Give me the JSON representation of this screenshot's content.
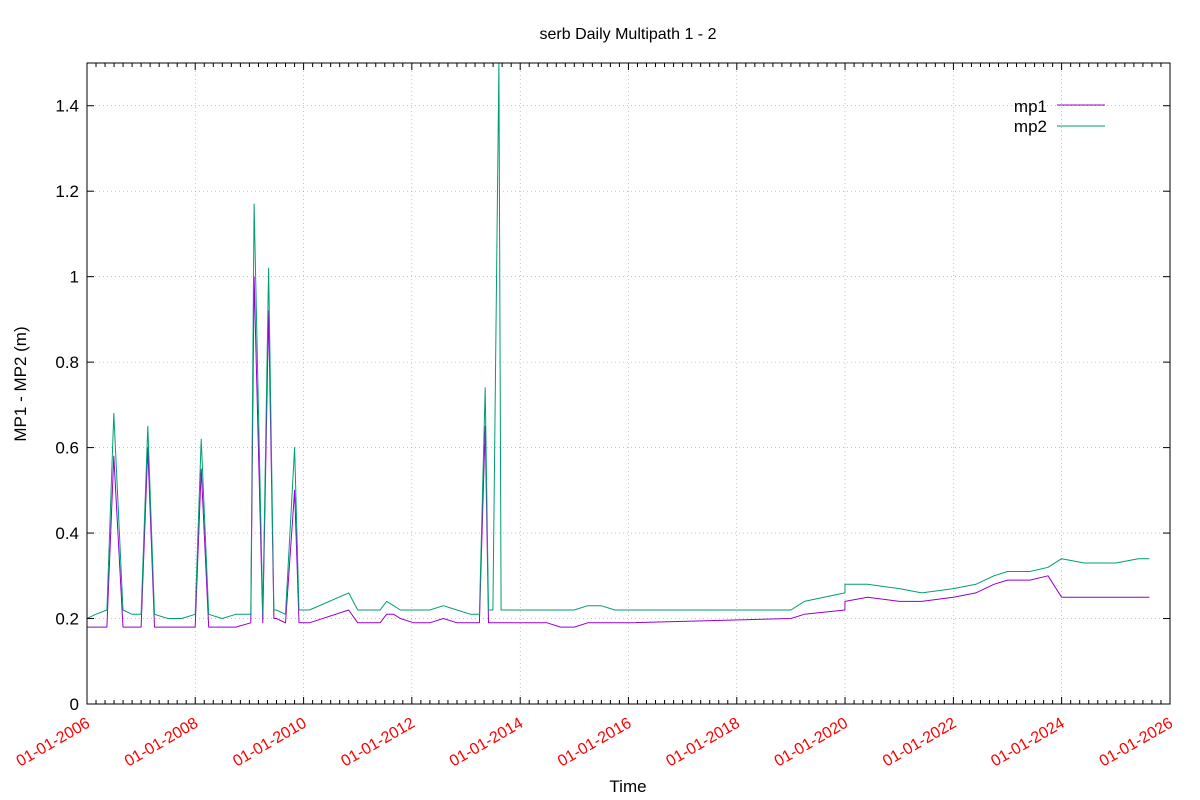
{
  "chart_data": {
    "type": "line",
    "title": "serb Daily Multipath 1 - 2",
    "xlabel": "Time",
    "ylabel": "MP1 - MP2 (m)",
    "xlim": [
      "2006-01-01",
      "2026-01-01"
    ],
    "ylim": [
      0,
      1.5
    ],
    "yticks": [
      0,
      0.2,
      0.4,
      0.6,
      0.8,
      1,
      1.2,
      1.4
    ],
    "ytick_labels": [
      "0",
      "0.2",
      "0.4",
      "0.6",
      "0.8",
      "1",
      "1.2",
      "1.4"
    ],
    "xticks": [
      "2006-01-01",
      "2008-01-01",
      "2010-01-01",
      "2012-01-01",
      "2014-01-01",
      "2016-01-01",
      "2018-01-01",
      "2020-01-01",
      "2022-01-01",
      "2024-01-01",
      "2026-01-01"
    ],
    "xtick_labels": [
      "01-01-2006",
      "01-01-2008",
      "01-01-2010",
      "01-01-2012",
      "01-01-2014",
      "01-01-2016",
      "01-01-2018",
      "01-01-2020",
      "01-01-2022",
      "01-01-2024",
      "01-01-2026"
    ],
    "xtick_label_color": "#ff0000",
    "grid": true,
    "legend_position": "top-right",
    "series": [
      {
        "name": "mp1",
        "color": "#9400d3",
        "x": [
          "2006-01-01",
          "2006-03-01",
          "2006-05-15",
          "2006-07-01",
          "2006-09-01",
          "2006-11-01",
          "2007-01-01",
          "2007-02-15",
          "2007-04-01",
          "2007-07-01",
          "2007-10-01",
          "2008-01-01",
          "2008-02-10",
          "2008-04-01",
          "2008-07-01",
          "2008-10-01",
          "2009-01-10",
          "2009-02-01",
          "2009-04-01",
          "2009-05-10",
          "2009-06-15",
          "2009-07-01",
          "2009-09-01",
          "2009-11-01",
          "2009-12-01",
          "2010-02-10",
          "2010-11-01",
          "2011-01-01",
          "2011-04-01",
          "2011-06-01",
          "2011-07-15",
          "2011-09-01",
          "2011-10-15",
          "2012-01-15",
          "2012-03-01",
          "2012-05-01",
          "2012-08-01",
          "2012-11-01",
          "2013-02-01",
          "2013-04-01",
          "2013-05-10",
          "2013-06-01",
          "2013-07-01",
          "2013-10-01",
          "2014-01-01",
          "2014-04-01",
          "2014-07-01",
          "2014-10-01",
          "2015-01-01",
          "2015-04-01",
          "2015-07-01",
          "2015-10-01",
          "2015-12-31",
          "2019-01-01",
          "2019-04-01",
          "2019-12-31",
          "2020-01-01",
          "2020-06-01",
          "2021-01-01",
          "2021-06-01",
          "2022-01-01",
          "2022-06-01",
          "2022-10-01",
          "2023-01-01",
          "2023-06-01",
          "2023-10-01",
          "2024-01-01",
          "2024-06-01",
          "2025-01-01",
          "2025-06-01",
          "2025-08-15"
        ],
        "values": [
          0.18,
          0.18,
          0.18,
          0.58,
          0.18,
          0.18,
          0.18,
          0.6,
          0.18,
          0.18,
          0.18,
          0.18,
          0.55,
          0.18,
          0.18,
          0.18,
          0.19,
          1.0,
          0.19,
          0.92,
          0.2,
          0.2,
          0.19,
          0.5,
          0.19,
          0.19,
          0.22,
          0.19,
          0.19,
          0.19,
          0.21,
          0.21,
          0.2,
          0.19,
          0.19,
          0.19,
          0.2,
          0.19,
          0.19,
          0.19,
          0.65,
          0.19,
          0.19,
          0.19,
          0.19,
          0.19,
          0.19,
          0.18,
          0.18,
          0.19,
          0.19,
          0.19,
          0.19,
          0.2,
          0.21,
          0.22,
          0.24,
          0.25,
          0.24,
          0.24,
          0.25,
          0.26,
          0.28,
          0.29,
          0.29,
          0.3,
          0.25,
          0.25,
          0.25,
          0.25,
          0.25
        ]
      },
      {
        "name": "mp2",
        "color": "#009e73",
        "x": [
          "2006-01-01",
          "2006-03-01",
          "2006-05-15",
          "2006-07-01",
          "2006-09-01",
          "2006-11-01",
          "2007-01-01",
          "2007-02-15",
          "2007-04-01",
          "2007-07-01",
          "2007-10-01",
          "2008-01-01",
          "2008-02-10",
          "2008-04-01",
          "2008-07-01",
          "2008-10-01",
          "2009-01-10",
          "2009-02-01",
          "2009-04-01",
          "2009-05-10",
          "2009-06-15",
          "2009-07-01",
          "2009-09-01",
          "2009-11-01",
          "2009-12-01",
          "2010-02-10",
          "2010-11-01",
          "2011-01-01",
          "2011-04-01",
          "2011-06-01",
          "2011-07-15",
          "2011-09-01",
          "2011-10-15",
          "2012-01-15",
          "2012-03-01",
          "2012-05-01",
          "2012-08-01",
          "2012-11-01",
          "2013-02-01",
          "2013-04-01",
          "2013-05-10",
          "2013-06-01",
          "2013-07-01",
          "2013-08-10",
          "2013-08-25",
          "2013-10-01",
          "2014-01-01",
          "2014-04-01",
          "2014-07-01",
          "2014-10-01",
          "2015-01-01",
          "2015-04-01",
          "2015-07-01",
          "2015-10-01",
          "2015-12-31",
          "2019-01-01",
          "2019-04-01",
          "2019-12-31",
          "2020-01-01",
          "2020-06-01",
          "2021-01-01",
          "2021-06-01",
          "2022-01-01",
          "2022-06-01",
          "2022-10-01",
          "2023-01-01",
          "2023-06-01",
          "2023-10-01",
          "2024-01-01",
          "2024-06-01",
          "2025-01-01",
          "2025-06-01",
          "2025-08-15"
        ],
        "values": [
          0.2,
          0.21,
          0.22,
          0.68,
          0.22,
          0.21,
          0.21,
          0.65,
          0.21,
          0.2,
          0.2,
          0.21,
          0.62,
          0.21,
          0.2,
          0.21,
          0.21,
          1.17,
          0.21,
          1.02,
          0.22,
          0.22,
          0.21,
          0.6,
          0.22,
          0.22,
          0.26,
          0.22,
          0.22,
          0.22,
          0.24,
          0.23,
          0.22,
          0.22,
          0.22,
          0.22,
          0.23,
          0.22,
          0.21,
          0.21,
          0.74,
          0.22,
          0.22,
          1.5,
          0.22,
          0.22,
          0.22,
          0.22,
          0.22,
          0.22,
          0.22,
          0.23,
          0.23,
          0.22,
          0.22,
          0.22,
          0.24,
          0.26,
          0.28,
          0.28,
          0.27,
          0.26,
          0.27,
          0.28,
          0.3,
          0.31,
          0.31,
          0.32,
          0.34,
          0.33,
          0.33,
          0.34,
          0.34
        ]
      }
    ]
  }
}
